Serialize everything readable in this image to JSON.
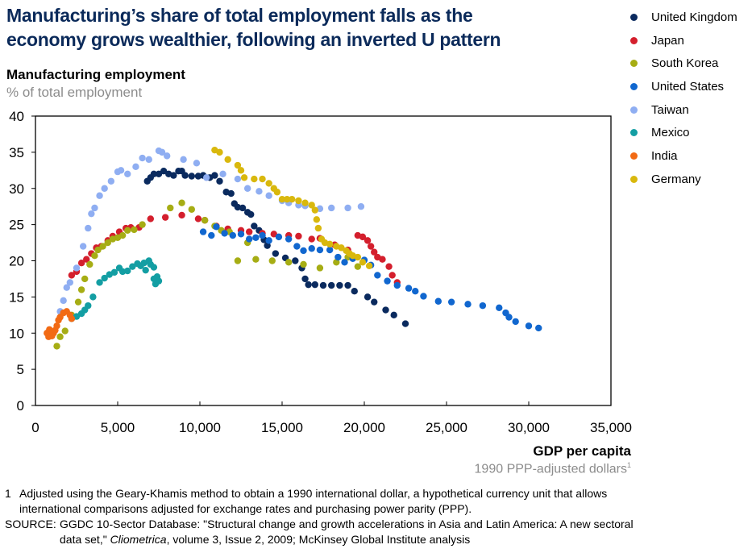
{
  "title_line1": "Manufacturing’s share of total employment falls as the",
  "title_line2": "economy grows wealthier, following an inverted U pattern",
  "footnote": {
    "number": "1",
    "line1": "Adjusted using the Geary-Khamis method to obtain a 1990 international dollar, a hypothetical currency unit that allows",
    "line2": "international comparisons adjusted for exchange rates and purchasing power parity (PPP)."
  },
  "source": {
    "label": "SOURCE:",
    "line1": "GGDC 10-Sector Database: \"Structural change and growth accelerations in Asia and Latin America: A new sectoral",
    "line2_pre": "data set,\" ",
    "line2_italic": "Cliometrica",
    "line2_post": ", volume 3, Issue 2, 2009; McKinsey Global Institute analysis"
  },
  "chart_data": {
    "type": "scatter",
    "title": "Manufacturing’s share of total employment falls as the economy grows wealthier, following an inverted U pattern",
    "ylabel": "Manufacturing employment",
    "ylabel_sub": "% of total employment",
    "xlabel": "GDP per capita",
    "xlabel_sub": "1990 PPP-adjusted dollars",
    "xlabel_sub_sup": "1",
    "xlim": [
      0,
      35000
    ],
    "ylim": [
      0,
      40
    ],
    "xticks": [
      0,
      5000,
      10000,
      15000,
      20000,
      25000,
      30000,
      35000
    ],
    "xtick_labels": [
      "0",
      "5,000",
      "10,000",
      "15,000",
      "20,000",
      "25,000",
      "30,000",
      "35,000"
    ],
    "yticks": [
      0,
      5,
      10,
      15,
      20,
      25,
      30,
      35,
      40
    ],
    "ytick_labels": [
      "0",
      "5",
      "10",
      "15",
      "20",
      "25",
      "30",
      "35",
      "40"
    ],
    "grid": false,
    "legend_position": "top-right",
    "series": [
      {
        "name": "United Kingdom",
        "color": "#0a2a5e",
        "points": [
          [
            6800,
            31
          ],
          [
            7000,
            31.5
          ],
          [
            7200,
            32
          ],
          [
            7500,
            32
          ],
          [
            7800,
            32.4
          ],
          [
            8100,
            32
          ],
          [
            8400,
            31.8
          ],
          [
            8700,
            32.4
          ],
          [
            8900,
            32.4
          ],
          [
            9100,
            31.8
          ],
          [
            9500,
            31.7
          ],
          [
            9900,
            31.7
          ],
          [
            10200,
            31.8
          ],
          [
            10600,
            31.5
          ],
          [
            10900,
            31.8
          ],
          [
            11200,
            31
          ],
          [
            11600,
            29.5
          ],
          [
            11900,
            29.3
          ],
          [
            12100,
            27.9
          ],
          [
            12300,
            27.4
          ],
          [
            12600,
            27.3
          ],
          [
            12900,
            26.7
          ],
          [
            13100,
            26.4
          ],
          [
            13300,
            24.8
          ],
          [
            13600,
            24.2
          ],
          [
            13900,
            22.9
          ],
          [
            14100,
            22.1
          ],
          [
            14600,
            21
          ],
          [
            15200,
            20.4
          ],
          [
            15800,
            20
          ],
          [
            16200,
            19
          ],
          [
            16400,
            17.5
          ],
          [
            16600,
            16.7
          ],
          [
            17000,
            16.7
          ],
          [
            17500,
            16.6
          ],
          [
            18000,
            16.6
          ],
          [
            18500,
            16.6
          ],
          [
            19000,
            16.6
          ],
          [
            19400,
            15.8
          ],
          [
            20200,
            15
          ],
          [
            20600,
            14.3
          ],
          [
            21300,
            13.2
          ],
          [
            21800,
            12.5
          ],
          [
            22500,
            11.3
          ]
        ]
      },
      {
        "name": "Japan",
        "color": "#d41f2d",
        "points": [
          [
            2200,
            18
          ],
          [
            2500,
            18.5
          ],
          [
            2800,
            19.7
          ],
          [
            3100,
            20.2
          ],
          [
            3400,
            21
          ],
          [
            3700,
            21.8
          ],
          [
            4000,
            22
          ],
          [
            4400,
            22.8
          ],
          [
            4700,
            23.4
          ],
          [
            5100,
            24
          ],
          [
            5500,
            24.5
          ],
          [
            5800,
            24.6
          ],
          [
            6300,
            24.6
          ],
          [
            7000,
            25.8
          ],
          [
            7900,
            26
          ],
          [
            8900,
            26.3
          ],
          [
            9900,
            25.8
          ],
          [
            10300,
            25.6
          ],
          [
            11000,
            24.8
          ],
          [
            11700,
            24.4
          ],
          [
            12500,
            24.2
          ],
          [
            13000,
            24
          ],
          [
            13800,
            23.8
          ],
          [
            14500,
            23.7
          ],
          [
            15400,
            23.5
          ],
          [
            16000,
            23.4
          ],
          [
            16800,
            23
          ],
          [
            17300,
            23.1
          ],
          [
            18200,
            22.2
          ],
          [
            19000,
            21.5
          ],
          [
            19600,
            23.5
          ],
          [
            19900,
            23.3
          ],
          [
            20200,
            22.8
          ],
          [
            20400,
            22
          ],
          [
            20600,
            21.2
          ],
          [
            20800,
            20.5
          ],
          [
            21100,
            20.2
          ],
          [
            21500,
            19.2
          ],
          [
            21700,
            18
          ],
          [
            22000,
            17
          ]
        ]
      },
      {
        "name": "South Korea",
        "color": "#a6ad14",
        "points": [
          [
            1300,
            8.2
          ],
          [
            1500,
            9.5
          ],
          [
            1800,
            10.3
          ],
          [
            2200,
            12.5
          ],
          [
            2600,
            14.3
          ],
          [
            2800,
            16
          ],
          [
            3000,
            17.5
          ],
          [
            3300,
            19.5
          ],
          [
            3600,
            20.7
          ],
          [
            3800,
            21.5
          ],
          [
            4100,
            22
          ],
          [
            4400,
            22.5
          ],
          [
            4700,
            23
          ],
          [
            5000,
            23.2
          ],
          [
            5300,
            23.5
          ],
          [
            5600,
            24.2
          ],
          [
            6000,
            24.3
          ],
          [
            6500,
            25
          ],
          [
            8200,
            27.3
          ],
          [
            8900,
            28
          ],
          [
            9500,
            27.1
          ],
          [
            10300,
            25.6
          ],
          [
            10900,
            24.8
          ],
          [
            11300,
            24.2
          ],
          [
            11800,
            24
          ],
          [
            12300,
            20
          ],
          [
            12900,
            22.5
          ],
          [
            13400,
            20.2
          ],
          [
            14400,
            20
          ],
          [
            15400,
            19.8
          ],
          [
            16300,
            19.5
          ],
          [
            17300,
            19
          ],
          [
            18300,
            19.8
          ],
          [
            19000,
            20.5
          ],
          [
            19600,
            19.2
          ]
        ]
      },
      {
        "name": "United States",
        "color": "#1167cf",
        "points": [
          [
            10200,
            24
          ],
          [
            10700,
            23.5
          ],
          [
            11000,
            24.7
          ],
          [
            11500,
            23.8
          ],
          [
            12000,
            23.5
          ],
          [
            12500,
            23.7
          ],
          [
            13000,
            23
          ],
          [
            13400,
            23.2
          ],
          [
            13800,
            23.5
          ],
          [
            14200,
            22.8
          ],
          [
            14800,
            23.3
          ],
          [
            15400,
            23
          ],
          [
            15900,
            22
          ],
          [
            16300,
            21.4
          ],
          [
            16800,
            21.7
          ],
          [
            17300,
            21.5
          ],
          [
            17900,
            21.5
          ],
          [
            18400,
            20.5
          ],
          [
            18800,
            19.8
          ],
          [
            19300,
            20.3
          ],
          [
            20000,
            20.1
          ],
          [
            20400,
            19.4
          ],
          [
            20800,
            18
          ],
          [
            21400,
            17.2
          ],
          [
            22000,
            16.6
          ],
          [
            22700,
            16.2
          ],
          [
            23100,
            15.8
          ],
          [
            23600,
            15.1
          ],
          [
            24500,
            14.4
          ],
          [
            25300,
            14.3
          ],
          [
            26300,
            14
          ],
          [
            27200,
            13.8
          ],
          [
            28200,
            13.5
          ],
          [
            28600,
            12.8
          ],
          [
            28800,
            12.2
          ],
          [
            29200,
            11.6
          ],
          [
            30000,
            11
          ],
          [
            30600,
            10.7
          ]
        ]
      },
      {
        "name": "Taiwan",
        "color": "#8faef2",
        "points": [
          [
            1500,
            13
          ],
          [
            1700,
            14.5
          ],
          [
            1900,
            16.3
          ],
          [
            2100,
            17
          ],
          [
            2500,
            19
          ],
          [
            2900,
            22
          ],
          [
            3200,
            24.5
          ],
          [
            3400,
            26.5
          ],
          [
            3600,
            27.3
          ],
          [
            3900,
            29
          ],
          [
            4200,
            30
          ],
          [
            4600,
            31
          ],
          [
            5000,
            32.3
          ],
          [
            5200,
            32.5
          ],
          [
            5600,
            32
          ],
          [
            6100,
            33
          ],
          [
            6500,
            34.2
          ],
          [
            6900,
            34
          ],
          [
            7500,
            35.2
          ],
          [
            7700,
            35
          ],
          [
            8000,
            34.5
          ],
          [
            9000,
            34
          ],
          [
            9800,
            33.5
          ],
          [
            10400,
            31.5
          ],
          [
            11400,
            32
          ],
          [
            12300,
            31.3
          ],
          [
            12900,
            30
          ],
          [
            13600,
            29.6
          ],
          [
            14200,
            29
          ],
          [
            15000,
            28.3
          ],
          [
            15400,
            28
          ],
          [
            16000,
            27.7
          ],
          [
            16400,
            27.6
          ],
          [
            17300,
            27.2
          ],
          [
            18000,
            27.3
          ],
          [
            19000,
            27.3
          ],
          [
            19800,
            27.5
          ]
        ]
      },
      {
        "name": "Mexico",
        "color": "#139ea3",
        "points": [
          [
            2200,
            12
          ],
          [
            2500,
            12.3
          ],
          [
            2800,
            12.7
          ],
          [
            3000,
            13.2
          ],
          [
            3200,
            13.8
          ],
          [
            3500,
            15
          ],
          [
            3900,
            17
          ],
          [
            4200,
            17.6
          ],
          [
            4500,
            18.1
          ],
          [
            4800,
            18.4
          ],
          [
            5100,
            19
          ],
          [
            5300,
            18.5
          ],
          [
            5600,
            18.6
          ],
          [
            5900,
            19.2
          ],
          [
            6200,
            19.6
          ],
          [
            6400,
            19.3
          ],
          [
            6600,
            19.7
          ],
          [
            6700,
            18.7
          ],
          [
            6900,
            20
          ],
          [
            7000,
            19.5
          ],
          [
            7200,
            19.1
          ],
          [
            7400,
            17.8
          ],
          [
            7500,
            17.2
          ],
          [
            7200,
            17.5
          ],
          [
            7300,
            16.8
          ]
        ]
      },
      {
        "name": "India",
        "color": "#f26a14",
        "points": [
          [
            700,
            10
          ],
          [
            800,
            9.5
          ],
          [
            850,
            10.5
          ],
          [
            900,
            9.8
          ],
          [
            1000,
            9.6
          ],
          [
            1100,
            10
          ],
          [
            1200,
            10.4
          ],
          [
            1300,
            11
          ],
          [
            1400,
            11.8
          ],
          [
            1500,
            12.2
          ],
          [
            1700,
            12.8
          ],
          [
            1900,
            13
          ],
          [
            2100,
            12.5
          ],
          [
            2200,
            12
          ]
        ]
      },
      {
        "name": "Germany",
        "color": "#d9b80d",
        "points": [
          [
            10900,
            35.3
          ],
          [
            11200,
            35
          ],
          [
            11700,
            34
          ],
          [
            12300,
            33.2
          ],
          [
            12500,
            32.5
          ],
          [
            12700,
            31.5
          ],
          [
            13300,
            31.3
          ],
          [
            13800,
            31.3
          ],
          [
            14200,
            30.7
          ],
          [
            14500,
            30
          ],
          [
            14700,
            29.5
          ],
          [
            15000,
            28.5
          ],
          [
            15300,
            28.5
          ],
          [
            15600,
            28.5
          ],
          [
            16000,
            28.3
          ],
          [
            16400,
            28
          ],
          [
            16800,
            27.7
          ],
          [
            17000,
            27
          ],
          [
            17100,
            25.7
          ],
          [
            17200,
            24.5
          ],
          [
            17400,
            23
          ],
          [
            17600,
            22.5
          ],
          [
            17900,
            22.3
          ],
          [
            18300,
            22
          ],
          [
            18600,
            21.8
          ],
          [
            18900,
            21.4
          ],
          [
            19100,
            21
          ],
          [
            19300,
            20.7
          ],
          [
            19600,
            20.5
          ],
          [
            19900,
            19.8
          ],
          [
            20300,
            19.3
          ]
        ]
      }
    ]
  }
}
